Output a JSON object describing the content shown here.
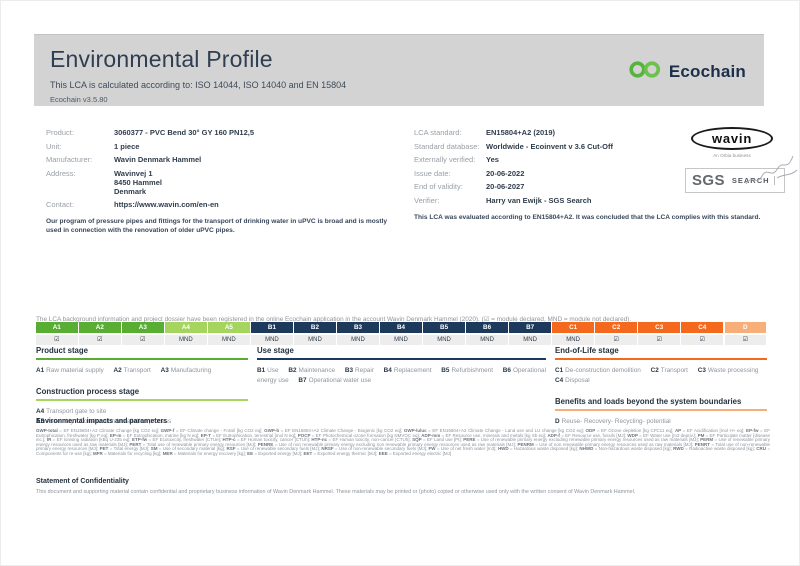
{
  "header": {
    "title": "Environmental Profile",
    "subtitle": "This LCA is calculated according to: ISO 14044, ISO 14040 and EN 15804",
    "version": "Ecochain v3.5.80",
    "logo_text": "Ecochain"
  },
  "product_info": {
    "rows": [
      {
        "label": "Product:",
        "value": "3060377 - PVC Bend 30° GY 160 PN12,5"
      },
      {
        "label": "Unit:",
        "value": "1 piece"
      },
      {
        "label": "Manufacturer:",
        "value": "Wavin Denmark Hammel"
      },
      {
        "label": "Address:",
        "value": "Wavinvej 1\n8450 Hammel\nDenmark"
      },
      {
        "label": "Contact:",
        "value": "https://www.wavin.com/en-en"
      }
    ],
    "description": "Our program of pressure pipes and fittings for the transport of drinking water in uPVC is broad and is mostly used in connection with the renovation of older uPVC pipes."
  },
  "lca_info": {
    "rows": [
      {
        "label": "LCA standard:",
        "value": "EN15804+A2 (2019)"
      },
      {
        "label": "Standard database:",
        "value": "Worldwide - Ecoinvent v 3.6 Cut-Off"
      },
      {
        "label": "Externally verified:",
        "value": "Yes"
      },
      {
        "label": "Issue date:",
        "value": "20-06-2022"
      },
      {
        "label": "End of validity:",
        "value": "20-06-2027"
      },
      {
        "label": "Verifier:",
        "value": "Harry van Ewijk - SGS Search"
      }
    ],
    "evaluation": "This LCA was evaluated according to EN15804+A2. It was concluded that the LCA complies with this standard.",
    "wavin_logo": "wavin",
    "wavin_tagline": "An Orbia business",
    "sgs_logo": "SGS",
    "sgs_search": "SEARCH"
  },
  "registration_note": "The LCA background information and project dossier have been registered in the online Ecochain application in the account Wavin Denmark Hammel (2020). (☑ = module declared, MND = module not declared).",
  "colors": {
    "product": "#57ae32",
    "construction": "#a6d55f",
    "use": "#1d3a5c",
    "eol": "#f4691e",
    "benefits": "#f8ae78",
    "header_band": "#d3d3d3",
    "logo_green": "#56b33c",
    "text_navy": "#25313e"
  },
  "modules": {
    "cells": [
      {
        "code": "A1",
        "status": "☑",
        "group": "product"
      },
      {
        "code": "A2",
        "status": "☑",
        "group": "product"
      },
      {
        "code": "A3",
        "status": "☑",
        "group": "product"
      },
      {
        "code": "A4",
        "status": "MND",
        "group": "construction"
      },
      {
        "code": "A5",
        "status": "MND",
        "group": "construction"
      },
      {
        "code": "B1",
        "status": "MND",
        "group": "use"
      },
      {
        "code": "B2",
        "status": "MND",
        "group": "use"
      },
      {
        "code": "B3",
        "status": "MND",
        "group": "use"
      },
      {
        "code": "B4",
        "status": "MND",
        "group": "use"
      },
      {
        "code": "B5",
        "status": "MND",
        "group": "use"
      },
      {
        "code": "B6",
        "status": "MND",
        "group": "use"
      },
      {
        "code": "B7",
        "status": "MND",
        "group": "use"
      },
      {
        "code": "C1",
        "status": "MND",
        "group": "eol"
      },
      {
        "code": "C2",
        "status": "☑",
        "group": "eol"
      },
      {
        "code": "C3",
        "status": "☑",
        "group": "eol"
      },
      {
        "code": "C4",
        "status": "☑",
        "group": "eol"
      },
      {
        "code": "D",
        "status": "☑",
        "group": "benefits"
      }
    ]
  },
  "stages": {
    "product": {
      "title": "Product stage",
      "items": [
        {
          "code": "A1",
          "label": "Raw material supply"
        },
        {
          "code": "A2",
          "label": "Transport"
        },
        {
          "code": "A3",
          "label": "Manufacturing"
        }
      ]
    },
    "construction": {
      "title": "Construction process stage",
      "items": [
        {
          "code": "A4",
          "label": "Transport gate to site"
        },
        {
          "code": "A5",
          "label": "Assembly / Construction installation process"
        }
      ]
    },
    "use": {
      "title": "Use stage",
      "items": [
        {
          "code": "B1",
          "label": "Use"
        },
        {
          "code": "B2",
          "label": "Maintenance"
        },
        {
          "code": "B3",
          "label": "Repair"
        },
        {
          "code": "B4",
          "label": "Replacement"
        },
        {
          "code": "B5",
          "label": "Refurbishment"
        },
        {
          "code": "B6",
          "label": "Operational energy use"
        },
        {
          "code": "B7",
          "label": "Operational water use"
        }
      ]
    },
    "eol": {
      "title": "End-of-Life stage",
      "items": [
        {
          "code": "C1",
          "label": "De-construction demolition"
        },
        {
          "code": "C2",
          "label": "Transport"
        },
        {
          "code": "C3",
          "label": "Waste processing"
        },
        {
          "code": "C4",
          "label": "Disposal"
        }
      ]
    },
    "benefits": {
      "title": "Benefits and loads beyond the system boundaries",
      "items": [
        {
          "code": "D",
          "label": "Reuse- Recovery- Recycling- potential"
        }
      ]
    }
  },
  "impacts": {
    "heading": "Environmental impacts and parameters",
    "terms": [
      [
        "GWP-total",
        "EF EN15804+A2 Climate Change [kg CO2 eq]"
      ],
      [
        "GWP-f",
        "EF Climate change - Fossil [kg CO2 eq]"
      ],
      [
        "GWP-b",
        "EF EN15804+A2 Climate Change - Biogenic [kg CO2 eq]"
      ],
      [
        "GWP-luluc",
        "EF EN15804+A2 Climate Change - Land use and LU change [kg CO2 eq]"
      ],
      [
        "ODP",
        "EF Ozone depletion [kg CFC11 eq]"
      ],
      [
        "AP",
        "EF Acidification [mol H+ eq]"
      ],
      [
        "EP-fw",
        "EF Eutrophication, freshwater [kg P eq]"
      ],
      [
        "EP-m",
        "EF Eutrophication, marine [kg N eq]"
      ],
      [
        "EP-T",
        "EF Eutrophication, terrestrial [mol N eq]"
      ],
      [
        "POCP",
        "EF Photochemical ozone formation [kg NMVOC eq]"
      ],
      [
        "ADP-mm",
        "EF Resource use, minerals and metals [kg Sb eq]"
      ],
      [
        "ADP-f",
        "EF Resource use, fossils [MJ]"
      ],
      [
        "WDP",
        "EF Water use [m3 depriv.]"
      ],
      [
        "PM",
        "EF Particulate matter [disease inc.]"
      ],
      [
        "IR",
        "EF Ionising radiation [kBq U-235 eq]"
      ],
      [
        "ETP-fw",
        "EF Ecotoxicity, freshwater [CTUe]"
      ],
      [
        "HTP-c",
        "EF Human toxicity, cancer [CTUh]"
      ],
      [
        "HTP-nc",
        "EF Human toxicity, non-cancer [CTUh]"
      ],
      [
        "SQP",
        "EF Land use [Pt]"
      ],
      [
        "PERE",
        "Use of renewable primary energy excluding renewable primary energy resources used as raw materials [MJ]"
      ],
      [
        "PERM",
        "Use of renewable primary energy resources used as raw materials [MJ]"
      ],
      [
        "PERT",
        "Total use of renewable primary energy resources [MJ]"
      ],
      [
        "PENRE",
        "Use of non renewable primary energy excluding non renewable primary energy resources used as raw materials [MJ]"
      ],
      [
        "PENRM",
        "Use of non renewable primary energy resources used as raw materials [MJ]"
      ],
      [
        "PENRT",
        "Total use of non-renewable primary energy resources [MJ]"
      ],
      [
        "PET",
        "Total energy [MJ]"
      ],
      [
        "SM",
        "Use of secondary material [kg]"
      ],
      [
        "RSF",
        "Use of renewable secondary fuels [MJ]"
      ],
      [
        "NRSF",
        "Use of non-renewable secondary fuels [MJ]"
      ],
      [
        "FW",
        "Use of net fresh water [m3]"
      ],
      [
        "HWD",
        "Hazardous waste disposed [kg]"
      ],
      [
        "NHWD",
        "Non-hazardous waste disposed [kg]"
      ],
      [
        "RWD",
        "Radioactive waste disposed [kg]"
      ],
      [
        "CRU",
        "Components for re-use [kg]"
      ],
      [
        "MFR",
        "Materials for recycling [kg]"
      ],
      [
        "MER",
        "Materials for energy recovery [kg]"
      ],
      [
        "EE",
        "Exported energy [MJ]"
      ],
      [
        "EET",
        "Exported energy thermic [MJ]"
      ],
      [
        "EEE",
        "Exported energy electric [MJ]"
      ]
    ]
  },
  "confidentiality": {
    "heading": "Statement of Confidentiality",
    "text": "This document and supporting material contain confidential and proprietary business information of Wavin Denmark Hammel. These materials may be printed or (photo) copied or otherwise used only with the written consent of Wavin Denmark Hammel."
  }
}
